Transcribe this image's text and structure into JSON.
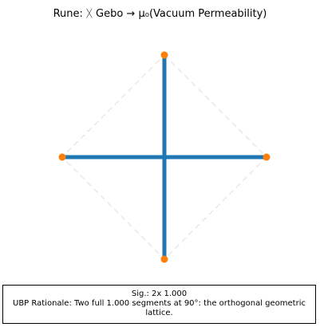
{
  "title": {
    "prefix": "Rune: ",
    "glyph": "ᚷ",
    "rune_name": "Gebo",
    "arrow": "→",
    "symbol": "μ₀",
    "meaning": "(Vacuum Permeability)"
  },
  "caption": {
    "signature": "Sig.: 2x 1.000",
    "rationale": "UBP Rationale: Two full 1.000 segments at 90°: the orthogonal geometric lattice."
  },
  "chart_data": {
    "type": "scatter",
    "points": [
      {
        "x": 0,
        "y": 1
      },
      {
        "x": 1,
        "y": 0
      },
      {
        "x": 0,
        "y": -1
      },
      {
        "x": -1,
        "y": 0
      }
    ],
    "segments": [
      {
        "from": [
          0,
          1
        ],
        "to": [
          0,
          -1
        ],
        "length": 2.0
      },
      {
        "from": [
          -1,
          0
        ],
        "to": [
          1,
          0
        ],
        "length": 2.0
      }
    ],
    "guide_outline": [
      [
        0,
        1
      ],
      [
        1,
        0
      ],
      [
        0,
        -1
      ],
      [
        -1,
        0
      ]
    ],
    "xlim": [
      -1,
      1
    ],
    "ylim": [
      -1,
      1
    ],
    "grid": false,
    "axes_visible": false,
    "colors": {
      "segment": "#1f77b4",
      "point": "#ff7f0e",
      "guide": "#e8e8e8"
    }
  }
}
